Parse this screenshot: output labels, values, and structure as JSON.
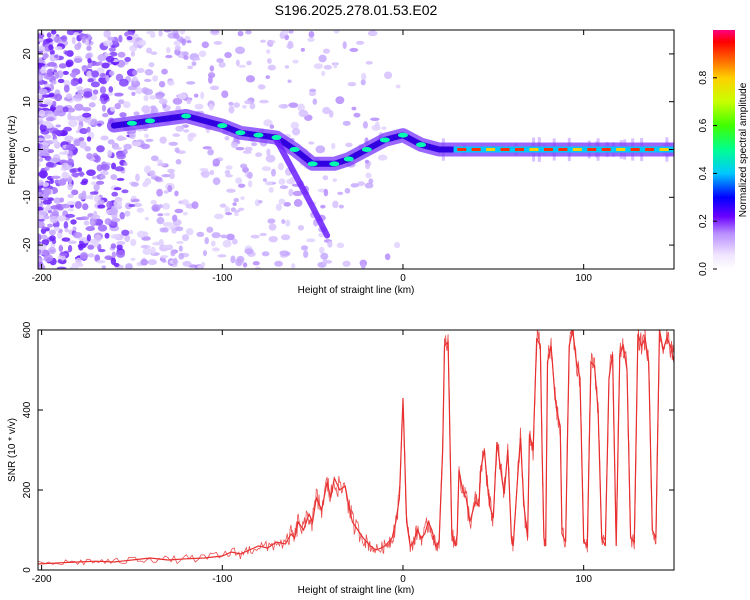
{
  "title": "S196.2025.278.01.53.E02",
  "chart_data": [
    {
      "type": "heatmap",
      "name": "spectrogram",
      "xlabel": "Height of straight line (km)",
      "ylabel": "Frequency (Hz)",
      "xlim": [
        -202,
        150
      ],
      "ylim": [
        -25,
        25
      ],
      "xticks": [
        -200,
        -100,
        0,
        100
      ],
      "yticks": [
        20,
        10,
        0,
        -10,
        -20
      ],
      "ridge": [
        {
          "x": -160,
          "y": 5
        },
        {
          "x": -150,
          "y": 5.5
        },
        {
          "x": -140,
          "y": 6
        },
        {
          "x": -120,
          "y": 7
        },
        {
          "x": -100,
          "y": 5
        },
        {
          "x": -90,
          "y": 3.5
        },
        {
          "x": -80,
          "y": 3
        },
        {
          "x": -70,
          "y": 2.5
        },
        {
          "x": -60,
          "y": 0
        },
        {
          "x": -50,
          "y": -3
        },
        {
          "x": -38,
          "y": -3
        },
        {
          "x": -30,
          "y": -2
        },
        {
          "x": -20,
          "y": 0
        },
        {
          "x": -10,
          "y": 2
        },
        {
          "x": 0,
          "y": 3
        },
        {
          "x": 10,
          "y": 1
        },
        {
          "x": 20,
          "y": 0
        },
        {
          "x": 30,
          "y": 0
        },
        {
          "x": 150,
          "y": 0
        }
      ],
      "colorbar": {
        "label": "Normalized spectral amplitude",
        "ticks": [
          "0.0",
          "0.2",
          "0.4",
          "0.6",
          "0.8"
        ],
        "range": [
          0,
          1
        ]
      }
    },
    {
      "type": "line",
      "name": "snr",
      "xlabel": "Height of straight line (km)",
      "ylabel": "SNR (10 * v/v)",
      "xlim": [
        -202,
        150
      ],
      "ylim": [
        0,
        600
      ],
      "xticks": [
        -200,
        -100,
        0,
        100
      ],
      "yticks": [
        600,
        400,
        200,
        0
      ],
      "color": "#e83030",
      "series": [
        {
          "name": "SNR",
          "x": [
            -202,
            -190,
            -180,
            -170,
            -160,
            -150,
            -140,
            -130,
            -120,
            -110,
            -100,
            -95,
            -90,
            -85,
            -80,
            -75,
            -70,
            -65,
            -62,
            -60,
            -58,
            -55,
            -52,
            -50,
            -48,
            -45,
            -42,
            -40,
            -38,
            -35,
            -32,
            -30,
            -28,
            -25,
            -22,
            -20,
            -18,
            -15,
            -12,
            -10,
            -8,
            -6,
            -4,
            -2,
            0,
            2,
            4,
            6,
            8,
            10,
            12,
            14,
            16,
            18,
            20,
            22,
            23,
            25,
            27,
            29,
            30,
            31,
            33,
            35,
            37,
            40,
            42,
            43,
            45,
            47,
            48,
            50,
            52,
            55,
            56,
            58,
            60,
            61,
            63,
            65,
            67,
            69,
            70,
            72,
            74,
            76,
            77,
            78,
            79,
            80,
            82,
            84,
            85,
            86,
            87,
            88,
            90,
            92,
            94,
            96,
            98,
            100,
            102,
            104,
            106,
            108,
            110,
            112,
            114,
            116,
            118,
            120,
            122,
            124,
            126,
            128,
            130,
            132,
            134,
            136,
            138,
            140,
            142,
            144,
            146,
            148,
            150
          ],
          "values": [
            15,
            18,
            20,
            22,
            20,
            25,
            30,
            25,
            28,
            30,
            35,
            45,
            40,
            50,
            60,
            55,
            70,
            65,
            90,
            80,
            120,
            100,
            140,
            120,
            180,
            150,
            220,
            180,
            230,
            200,
            210,
            160,
            120,
            100,
            80,
            70,
            60,
            50,
            55,
            60,
            70,
            80,
            120,
            180,
            430,
            120,
            60,
            70,
            100,
            80,
            90,
            120,
            100,
            60,
            70,
            300,
            560,
            570,
            90,
            60,
            90,
            250,
            200,
            180,
            120,
            170,
            160,
            250,
            300,
            200,
            160,
            130,
            320,
            220,
            190,
            300,
            80,
            60,
            200,
            330,
            160,
            80,
            340,
            300,
            580,
            560,
            300,
            80,
            60,
            520,
            560,
            440,
            400,
            380,
            360,
            90,
            70,
            560,
            600,
            520,
            480,
            70,
            60,
            520,
            510,
            400,
            80,
            60,
            480,
            540,
            60,
            540,
            560,
            500,
            80,
            70,
            590,
            560,
            580,
            520,
            100,
            80,
            600,
            550,
            580,
            560,
            520
          ]
        }
      ]
    }
  ]
}
